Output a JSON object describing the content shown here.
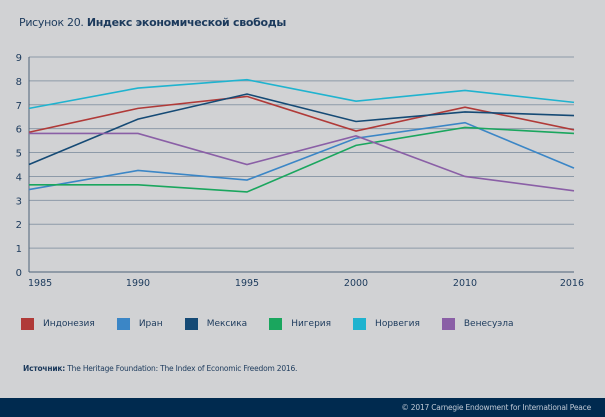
{
  "header": {
    "figure_label": "Рисунок 20.",
    "title": "Индекс экономической свободы"
  },
  "chart_data": {
    "type": "line",
    "title": "Индекс экономической свободы",
    "xlabel": "",
    "ylabel": "",
    "x": [
      "1985",
      "1990",
      "1995",
      "2000",
      "2010",
      "2016"
    ],
    "ylim": [
      0,
      9
    ],
    "yticks": [
      "0",
      "1",
      "2",
      "3",
      "4",
      "5",
      "6",
      "7",
      "8",
      "9"
    ],
    "grid": true,
    "legend_position": "bottom",
    "series": [
      {
        "name": "Индонезия",
        "color": "#b03a38",
        "values": [
          5.85,
          6.85,
          7.35,
          5.9,
          6.9,
          5.95
        ]
      },
      {
        "name": "Иран",
        "color": "#3b86c6",
        "values": [
          3.45,
          4.25,
          3.85,
          5.6,
          6.25,
          4.35
        ]
      },
      {
        "name": "Мексика",
        "color": "#154a75",
        "values": [
          4.5,
          6.4,
          7.45,
          6.3,
          6.7,
          6.55
        ]
      },
      {
        "name": "Нигерия",
        "color": "#1aa65e",
        "values": [
          3.65,
          3.65,
          3.35,
          5.3,
          6.05,
          5.8
        ]
      },
      {
        "name": "Норвегия",
        "color": "#1fb3cf",
        "values": [
          6.85,
          7.7,
          8.05,
          7.15,
          7.6,
          7.1
        ]
      },
      {
        "name": "Венесуэла",
        "color": "#8a5fa6",
        "values": [
          5.8,
          5.8,
          4.5,
          5.7,
          4.0,
          3.4
        ]
      }
    ]
  },
  "source": {
    "label": "Источник:",
    "text": "The Heritage Foundation: The Index of Economic Freedom 2016."
  },
  "footer": {
    "copyright": "© 2017 Carnegie Endowment for International Peace"
  }
}
